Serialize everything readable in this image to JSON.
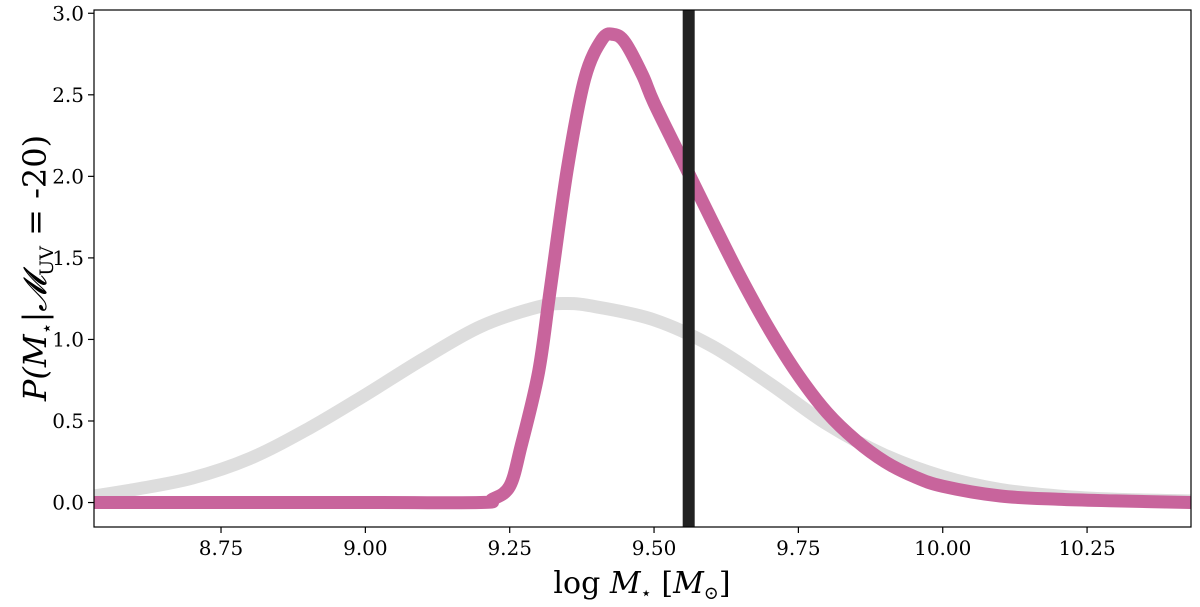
{
  "chart_data": {
    "type": "line",
    "title": "",
    "xlabel": "log M⋆ [M⊙]",
    "ylabel": "P(M⋆|𝓜UV = -20)",
    "ylabel_main": "P(M",
    "ylabel_parts": [
      "P(",
      "M",
      "⋆",
      "|",
      "𝓜",
      "UV",
      " = -20)"
    ],
    "xlabel_parts": [
      "log ",
      "M",
      "⋆",
      " [",
      "M",
      "⊙",
      "]"
    ],
    "xlim": [
      8.53,
      10.43
    ],
    "ylim": [
      -0.15,
      3.02
    ],
    "grid": false,
    "legend": "none",
    "x_ticks": [
      8.75,
      9.0,
      9.25,
      9.5,
      9.75,
      10.0,
      10.25
    ],
    "x_tick_labels": [
      "8.75",
      "9.00",
      "9.25",
      "9.50",
      "9.75",
      "10.00",
      "10.25"
    ],
    "y_ticks": [
      0.0,
      0.5,
      1.0,
      1.5,
      2.0,
      2.5,
      3.0
    ],
    "y_tick_labels": [
      "0.0",
      "0.5",
      "1.0",
      "1.5",
      "2.0",
      "2.5",
      "3.0"
    ],
    "vertical_line": {
      "x": 9.56,
      "color": "#222222"
    },
    "series": [
      {
        "color": "#dddddd",
        "x": [
          8.53,
          8.6,
          8.7,
          8.8,
          8.9,
          9.0,
          9.1,
          9.2,
          9.3,
          9.35,
          9.4,
          9.5,
          9.6,
          9.7,
          9.8,
          9.9,
          10.0,
          10.1,
          10.2,
          10.3,
          10.43
        ],
        "y": [
          0.04,
          0.08,
          0.15,
          0.27,
          0.45,
          0.66,
          0.88,
          1.08,
          1.2,
          1.22,
          1.2,
          1.12,
          0.96,
          0.73,
          0.48,
          0.29,
          0.16,
          0.08,
          0.04,
          0.02,
          0.01
        ]
      },
      {
        "color": "#c8649c",
        "x": [
          8.53,
          9.0,
          9.2,
          9.22,
          9.25,
          9.27,
          9.3,
          9.32,
          9.35,
          9.38,
          9.41,
          9.43,
          9.45,
          9.48,
          9.5,
          9.55,
          9.6,
          9.65,
          9.7,
          9.75,
          9.8,
          9.85,
          9.9,
          9.95,
          10.0,
          10.1,
          10.2,
          10.3,
          10.43
        ],
        "y": [
          0.0,
          0.0,
          0.0,
          0.02,
          0.1,
          0.35,
          0.8,
          1.3,
          2.05,
          2.6,
          2.84,
          2.87,
          2.82,
          2.62,
          2.45,
          2.09,
          1.73,
          1.38,
          1.06,
          0.78,
          0.55,
          0.38,
          0.25,
          0.16,
          0.1,
          0.04,
          0.02,
          0.01,
          0.0
        ]
      }
    ]
  }
}
